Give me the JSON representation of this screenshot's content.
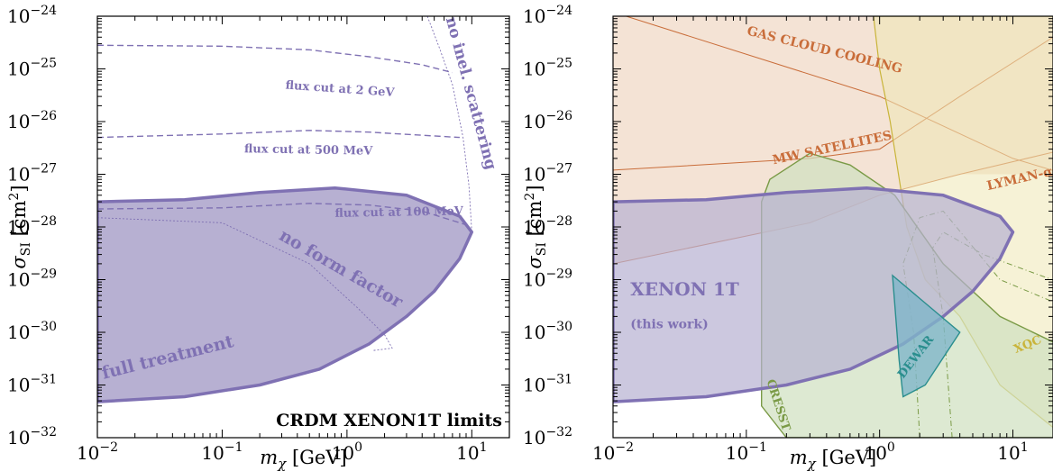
{
  "colors": {
    "xenon": "#7f71b3",
    "xenon_fill": "#b7b0d2",
    "gas_cloud": "#c96d3a",
    "gas_cloud_fill": "#f1dcca",
    "mw_fill": "#e9c9a6",
    "lyman": "#c96d3a",
    "xqc": "#c9b43a",
    "xqc_fill": "#efe7b4",
    "cresst": "#7a9a46",
    "cresst_fill": "#cfe0bf",
    "dewar": "#2a8e8e",
    "dewar_fill": "#7fb5c9"
  },
  "chart_data": [
    {
      "type": "area",
      "x_scale": "log",
      "y_scale": "log",
      "xlim": [
        "10^-2",
        "2·10^1"
      ],
      "ylim": [
        "10^-32",
        "10^-24"
      ],
      "xlabel": "m_χ [GeV]",
      "ylabel": "σ_SI [cm²]",
      "x_ticks": [
        "10^-2",
        "10^-1",
        "10^0",
        "10^1"
      ],
      "y_ticks": [
        "10^-32",
        "10^-31",
        "10^-30",
        "10^-29",
        "10^-28",
        "10^-27",
        "10^-26",
        "10^-25",
        "10^-24"
      ],
      "legend": "CRDM XENON1T limits",
      "series": [
        {
          "name": "full treatment",
          "style": "filled region",
          "points": [
            [
              0.01,
              3e-28
            ],
            [
              0.05,
              3.3e-28
            ],
            [
              0.2,
              4.5e-28
            ],
            [
              0.8,
              5.5e-28
            ],
            [
              3,
              4e-28
            ],
            [
              8,
              1.6e-28
            ],
            [
              10,
              8e-29
            ],
            [
              8,
              2.5e-29
            ],
            [
              5,
              6e-30
            ],
            [
              3,
              2e-30
            ],
            [
              1.5,
              6e-31
            ],
            [
              0.6,
              2e-31
            ],
            [
              0.2,
              1e-31
            ],
            [
              0.05,
              6e-32
            ],
            [
              0.01,
              4.8e-32
            ]
          ]
        },
        {
          "name": "flux cut at 2 GeV",
          "style": "dashed",
          "points": [
            [
              0.01,
              2.8e-25
            ],
            [
              0.1,
              2.7e-25
            ],
            [
              0.5,
              2.3e-25
            ],
            [
              1.5,
              1.7e-25
            ],
            [
              4,
              1.2e-25
            ],
            [
              7,
              8.5e-26
            ]
          ]
        },
        {
          "name": "flux cut at 500 MeV",
          "style": "dashed",
          "points": [
            [
              0.01,
              5e-27
            ],
            [
              0.1,
              5.8e-27
            ],
            [
              0.5,
              6.8e-27
            ],
            [
              1.5,
              6.3e-27
            ],
            [
              4,
              5.5e-27
            ],
            [
              8,
              5e-27
            ]
          ]
        },
        {
          "name": "flux cut at 100 MeV",
          "style": "dashed",
          "points": [
            [
              0.01,
              2.2e-28
            ],
            [
              0.1,
              2.3e-28
            ],
            [
              0.5,
              2.8e-28
            ],
            [
              1.5,
              2.6e-28
            ],
            [
              4,
              2e-28
            ],
            [
              9,
              1.1e-28
            ]
          ]
        },
        {
          "name": "no inel. scattering",
          "style": "dotted",
          "points": [
            [
              4.4,
              1e-24
            ],
            [
              5.5,
              2.5e-25
            ],
            [
              7,
              5e-26
            ],
            [
              8.5,
              5e-27
            ],
            [
              9.5,
              6e-28
            ],
            [
              10,
              8e-29
            ]
          ]
        },
        {
          "name": "no form factor",
          "style": "dotted",
          "points": [
            [
              0.01,
              1.5e-28
            ],
            [
              0.1,
              1.2e-28
            ],
            [
              0.5,
              2e-29
            ],
            [
              1.2,
              3e-30
            ],
            [
              2,
              9e-31
            ],
            [
              2.3,
              5e-31
            ],
            [
              1.6,
              4.5e-31
            ]
          ]
        }
      ]
    },
    {
      "type": "area",
      "x_scale": "log",
      "y_scale": "log",
      "xlim": [
        "10^-2",
        "2·10^1"
      ],
      "ylim": [
        "10^-32",
        "10^-24"
      ],
      "xlabel": "m_χ [GeV]",
      "ylabel": "σ_SI [cm²]",
      "x_ticks": [
        "10^-2",
        "10^-1",
        "10^0",
        "10^1"
      ],
      "y_ticks": [
        "10^-32",
        "10^-31",
        "10^-30",
        "10^-29",
        "10^-28",
        "10^-27",
        "10^-26",
        "10^-25",
        "10^-24"
      ],
      "series": [
        {
          "name": "GAS CLOUD COOLING",
          "style": "filled region"
        },
        {
          "name": "MW SATELLITES",
          "style": "line"
        },
        {
          "name": "LYMAN-α",
          "style": "line"
        },
        {
          "name": "XQC",
          "style": "filled region"
        },
        {
          "name": "CRESST",
          "style": "filled region"
        },
        {
          "name": "DEWAR",
          "style": "filled region"
        },
        {
          "name": "XENON 1T",
          "note": "(this work)",
          "style": "filled region"
        }
      ]
    }
  ]
}
